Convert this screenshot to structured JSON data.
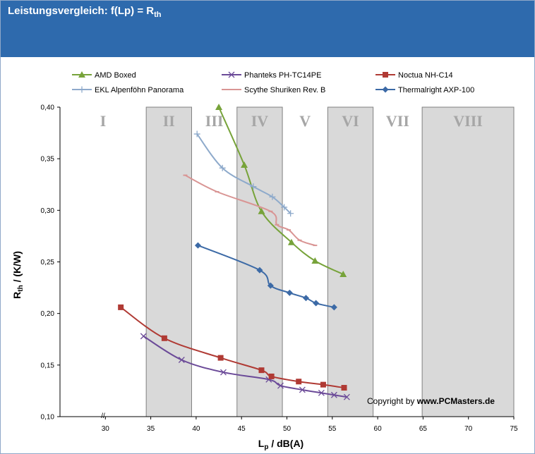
{
  "header": {
    "title_main": "Leistungsvergleich: f(Lp) = R",
    "title_sub": "th"
  },
  "chart_data": {
    "type": "line",
    "title": "Leistungsvergleich: f(Lp) = Rth",
    "xlabel": {
      "main": "L",
      "sub": "p",
      "rest": " / dB(A)"
    },
    "ylabel": {
      "main": "R",
      "sub": "th",
      "rest": " / (K/W)"
    },
    "xlim": [
      25,
      75
    ],
    "ylim": [
      0.1,
      0.4
    ],
    "x_ticks": [
      30,
      35,
      40,
      45,
      50,
      55,
      60,
      65,
      70,
      75
    ],
    "y_ticks": [
      0.1,
      0.15,
      0.2,
      0.25,
      0.3,
      0.35,
      0.4
    ],
    "y_tick_labels": [
      "0,10",
      "0,15",
      "0,20",
      "0,25",
      "0,30",
      "0,35",
      "0,40"
    ],
    "axis_break_symbol": "//",
    "grid": false,
    "legend_position": "top",
    "bands": [
      {
        "label": "I",
        "from": 25,
        "to": 34.5,
        "shaded": false
      },
      {
        "label": "II",
        "from": 34.5,
        "to": 39.5,
        "shaded": true
      },
      {
        "label": "III",
        "from": 39.5,
        "to": 44.5,
        "shaded": false
      },
      {
        "label": "IV",
        "from": 44.5,
        "to": 49.5,
        "shaded": true
      },
      {
        "label": "V",
        "from": 49.5,
        "to": 54.5,
        "shaded": false
      },
      {
        "label": "VI",
        "from": 54.5,
        "to": 59.5,
        "shaded": true
      },
      {
        "label": "VII",
        "from": 59.5,
        "to": 64.9,
        "shaded": false
      },
      {
        "label": "VIII",
        "from": 64.9,
        "to": 75,
        "shaded": true
      }
    ],
    "series": [
      {
        "name": "AMD Boxed",
        "color": "#77a33a",
        "marker": "triangle",
        "points": [
          [
            42.5,
            0.4
          ],
          [
            45.3,
            0.344
          ],
          [
            47.2,
            0.299
          ],
          [
            50.5,
            0.269
          ],
          [
            53.1,
            0.251
          ],
          [
            56.2,
            0.238
          ]
        ]
      },
      {
        "name": "Phanteks PH-TC14PE",
        "color": "#6b4a98",
        "marker": "x",
        "points": [
          [
            34.2,
            0.178
          ],
          [
            38.4,
            0.155
          ],
          [
            43.0,
            0.143
          ],
          [
            48.0,
            0.136
          ],
          [
            49.3,
            0.13
          ],
          [
            51.7,
            0.126
          ],
          [
            53.8,
            0.123
          ],
          [
            55.2,
            0.121
          ],
          [
            56.6,
            0.119
          ]
        ]
      },
      {
        "name": "Noctua NH-C14",
        "color": "#b03a34",
        "marker": "square",
        "points": [
          [
            31.7,
            0.206
          ],
          [
            36.5,
            0.176
          ],
          [
            42.7,
            0.157
          ],
          [
            47.2,
            0.145
          ],
          [
            48.3,
            0.139
          ],
          [
            51.3,
            0.134
          ],
          [
            54.0,
            0.131
          ],
          [
            56.3,
            0.128
          ]
        ]
      },
      {
        "name": "EKL Alpenföhn Panorama",
        "color": "#8eaacb",
        "marker": "plus",
        "points": [
          [
            40.1,
            0.374
          ],
          [
            42.9,
            0.341
          ],
          [
            46.3,
            0.323
          ],
          [
            48.4,
            0.313
          ],
          [
            49.7,
            0.303
          ],
          [
            50.4,
            0.297
          ]
        ]
      },
      {
        "name": "Scythe Shuriken Rev. B",
        "color": "#d99594",
        "marker": "dash",
        "points": [
          [
            38.8,
            0.334
          ],
          [
            42.3,
            0.318
          ],
          [
            48.2,
            0.299
          ],
          [
            48.9,
            0.286
          ],
          [
            50.2,
            0.281
          ],
          [
            51.4,
            0.271
          ],
          [
            53.1,
            0.266
          ]
        ]
      },
      {
        "name": "Thermalright AXP-100",
        "color": "#3c6aa6",
        "marker": "diamond",
        "points": [
          [
            40.2,
            0.266
          ],
          [
            47.0,
            0.242
          ],
          [
            48.2,
            0.227
          ],
          [
            50.3,
            0.22
          ],
          [
            52.1,
            0.215
          ],
          [
            53.2,
            0.21
          ],
          [
            55.2,
            0.206
          ]
        ]
      }
    ],
    "annotation": {
      "prefix": "Copyright by ",
      "bold": "www.PCMasters.de"
    }
  }
}
